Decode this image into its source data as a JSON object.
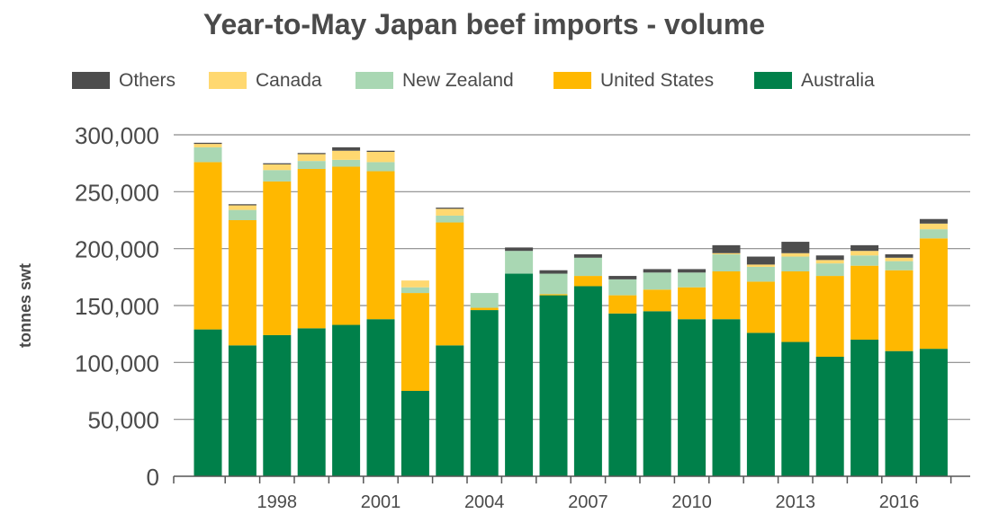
{
  "chart_data": {
    "type": "bar",
    "stacked": true,
    "title": "Year-to-May Japan beef imports - volume",
    "xlabel": "",
    "ylabel": "tonnes swt",
    "ylim": [
      0,
      300000
    ],
    "yticks": [
      0,
      50000,
      100000,
      150000,
      200000,
      250000,
      300000
    ],
    "ytick_labels": [
      "0",
      "50,000",
      "100,000",
      "150,000",
      "200,000",
      "250,000",
      "300,000"
    ],
    "categories": [
      "1996",
      "1997",
      "1998",
      "1999",
      "2000",
      "2001",
      "2002",
      "2003",
      "2004",
      "2005",
      "2006",
      "2007",
      "2008",
      "2009",
      "2010",
      "2011",
      "2012",
      "2013",
      "2014",
      "2015",
      "2016",
      "2017"
    ],
    "xtick_labels": [
      "1998",
      "2001",
      "2004",
      "2007",
      "2010",
      "2013",
      "2016"
    ],
    "grid": "horizontal",
    "legend_position": "top",
    "legend_order": [
      "Others",
      "Canada",
      "New Zealand",
      "United States",
      "Australia"
    ],
    "series": [
      {
        "name": "Australia",
        "color": "#00804a",
        "values": [
          129000,
          115000,
          124000,
          130000,
          133000,
          138000,
          75000,
          115000,
          146000,
          178000,
          159000,
          167000,
          143000,
          145000,
          138000,
          138000,
          126000,
          118000,
          105000,
          120000,
          110000,
          112000
        ]
      },
      {
        "name": "United States",
        "color": "#ffb800",
        "values": [
          147000,
          110000,
          135000,
          140000,
          139000,
          130000,
          86000,
          108000,
          2000,
          0,
          1000,
          9000,
          16000,
          19000,
          28000,
          42000,
          45000,
          62000,
          71000,
          65000,
          71000,
          97000
        ]
      },
      {
        "name": "New Zealand",
        "color": "#a9d7b3",
        "values": [
          13000,
          9000,
          10000,
          7000,
          6000,
          8000,
          5000,
          6000,
          13000,
          20000,
          18000,
          16000,
          14000,
          15000,
          13000,
          15000,
          13000,
          13000,
          11000,
          9000,
          8000,
          8000
        ]
      },
      {
        "name": "Canada",
        "color": "#ffd870",
        "values": [
          3000,
          4000,
          5000,
          6000,
          8000,
          9000,
          6000,
          6000,
          0,
          0,
          0,
          0,
          0,
          0,
          0,
          1000,
          2000,
          3000,
          3000,
          4000,
          3000,
          5000
        ]
      },
      {
        "name": "Others",
        "color": "#4d4d4d",
        "values": [
          1000,
          1000,
          1000,
          1000,
          3000,
          1000,
          0,
          1000,
          0,
          3000,
          3000,
          3000,
          3000,
          3000,
          3000,
          7000,
          7000,
          10000,
          4000,
          5000,
          3000,
          4000
        ]
      }
    ]
  }
}
